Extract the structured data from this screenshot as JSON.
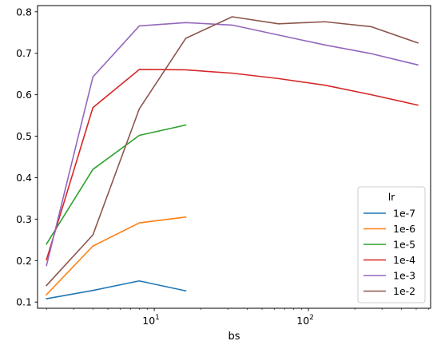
{
  "chart_data": {
    "type": "line",
    "xlabel": "bs",
    "ylabel": "",
    "title": "",
    "xscale": "log",
    "xlim": [
      1.75,
      620
    ],
    "ylim": [
      0.085,
      0.815
    ],
    "yticks": [
      0.1,
      0.2,
      0.3,
      0.4,
      0.5,
      0.6,
      0.7,
      0.8
    ],
    "ytick_labels": [
      "0.1",
      "0.2",
      "0.3",
      "0.4",
      "0.5",
      "0.6",
      "0.7",
      "0.8"
    ],
    "xticks": [
      10,
      100
    ],
    "xtick_base": "10",
    "xtick_exponents": [
      "1",
      "2"
    ],
    "grid": false,
    "legend": {
      "title": "lr",
      "placement": "lower-right"
    },
    "series": [
      {
        "name": "1e-7",
        "color": "#1f77b4",
        "x": [
          2,
          4,
          8,
          16
        ],
        "y": [
          0.108,
          0.128,
          0.151,
          0.127
        ]
      },
      {
        "name": "1e-6",
        "color": "#ff7f0e",
        "x": [
          2,
          4,
          8,
          16
        ],
        "y": [
          0.118,
          0.235,
          0.291,
          0.305
        ]
      },
      {
        "name": "1e-5",
        "color": "#2ca02c",
        "x": [
          2,
          4,
          8,
          16
        ],
        "y": [
          0.24,
          0.42,
          0.502,
          0.527
        ]
      },
      {
        "name": "1e-4",
        "color": "#d62728",
        "x": [
          2,
          4,
          8,
          16,
          32,
          64,
          128,
          256,
          512
        ],
        "y": [
          0.202,
          0.569,
          0.661,
          0.66,
          0.652,
          0.639,
          0.623,
          0.6,
          0.575
        ]
      },
      {
        "name": "1e-3",
        "color": "#9467bd",
        "x": [
          2,
          4,
          8,
          16,
          32,
          64,
          128,
          256,
          512
        ],
        "y": [
          0.188,
          0.643,
          0.766,
          0.774,
          0.768,
          0.744,
          0.72,
          0.699,
          0.672
        ]
      },
      {
        "name": "1e-2",
        "color": "#8c564b",
        "x": [
          2,
          4,
          8,
          16,
          32,
          64,
          128,
          256,
          512
        ],
        "y": [
          0.14,
          0.262,
          0.566,
          0.736,
          0.788,
          0.771,
          0.776,
          0.764,
          0.725
        ]
      }
    ]
  }
}
